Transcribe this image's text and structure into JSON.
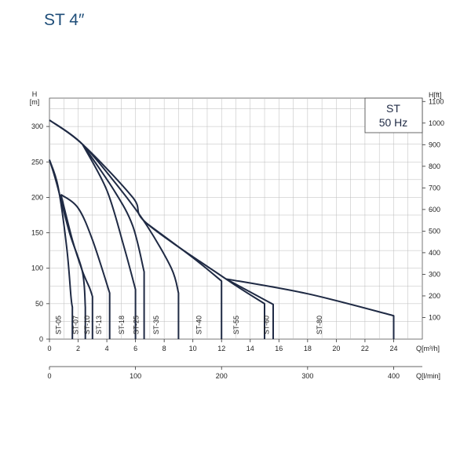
{
  "title": "ST 4″",
  "chart_data": {
    "type": "line",
    "legend": [
      "ST",
      "50 Hz"
    ],
    "legend_placement": "top-right",
    "grid": true,
    "x_axis": {
      "label": "Q[m³/h]",
      "range": [
        0,
        26
      ],
      "ticks": [
        0,
        2,
        4,
        6,
        8,
        10,
        12,
        14,
        16,
        18,
        20,
        22,
        24
      ]
    },
    "x2_axis": {
      "label": "Q[l/min]",
      "ticks": [
        0,
        100,
        200,
        300,
        400
      ]
    },
    "y_axis": {
      "label": [
        "H",
        "[m]"
      ],
      "range": [
        0,
        340
      ],
      "ticks": [
        0,
        50,
        100,
        150,
        200,
        250,
        300
      ]
    },
    "y2_axis": {
      "label": "H[ft]",
      "ticks": [
        100,
        200,
        300,
        400,
        500,
        600,
        700,
        800,
        900,
        1000,
        1100
      ]
    },
    "series": [
      {
        "name": "ST-05",
        "label_x": 0.8,
        "points": [
          [
            0,
            253
          ],
          [
            0.6,
            215
          ],
          [
            1.2,
            130
          ],
          [
            1.5,
            60
          ],
          [
            1.6,
            45
          ],
          [
            1.6,
            0
          ]
        ]
      },
      {
        "name": "ST-07",
        "label_x": 2.0,
        "points": [
          [
            0,
            253
          ],
          [
            0.5,
            220
          ],
          [
            1.4,
            150
          ],
          [
            2.3,
            95
          ],
          [
            2.5,
            45
          ],
          [
            2.5,
            0
          ]
        ]
      },
      {
        "name": "ST-10",
        "label_x": 2.8,
        "points": [
          [
            0.8,
            204
          ],
          [
            1.6,
            140
          ],
          [
            2.3,
            96
          ],
          [
            2.8,
            72
          ],
          [
            3.0,
            60
          ],
          [
            3.0,
            0
          ]
        ]
      },
      {
        "name": "ST-13",
        "label_x": 3.6,
        "points": [
          [
            0.8,
            204
          ],
          [
            2.0,
            185
          ],
          [
            3.0,
            140
          ],
          [
            4.2,
            65
          ],
          [
            4.2,
            0
          ]
        ]
      },
      {
        "name": "ST-18",
        "label_x": 5.2,
        "points": [
          [
            2.3,
            275
          ],
          [
            4.0,
            210
          ],
          [
            5.2,
            130
          ],
          [
            6.0,
            70
          ],
          [
            6.0,
            0
          ]
        ]
      },
      {
        "name": "ST-25",
        "label_x": 6.2,
        "points": [
          [
            2.3,
            275
          ],
          [
            4.5,
            210
          ],
          [
            5.8,
            160
          ],
          [
            6.6,
            95
          ],
          [
            6.6,
            0
          ]
        ]
      },
      {
        "name": "ST-35",
        "label_x": 7.6,
        "points": [
          [
            0,
            309
          ],
          [
            2.3,
            275
          ],
          [
            5.0,
            210
          ],
          [
            6.8,
            160
          ],
          [
            8.5,
            100
          ],
          [
            9.0,
            65
          ],
          [
            9.0,
            0
          ]
        ]
      },
      {
        "name": "ST-40",
        "label_x": 10.6,
        "points": [
          [
            6.8,
            163
          ],
          [
            10.0,
            115
          ],
          [
            12.0,
            82
          ],
          [
            12.0,
            0
          ]
        ]
      },
      {
        "name": "ST-55",
        "label_x": 13.2,
        "points": [
          [
            0,
            309
          ],
          [
            2.3,
            275
          ],
          [
            5.8,
            200
          ],
          [
            6.8,
            163
          ],
          [
            12.3,
            85
          ],
          [
            15.0,
            50
          ],
          [
            15.0,
            0
          ]
        ]
      },
      {
        "name": "ST-60",
        "label_x": 15.3,
        "points": [
          [
            12.3,
            85
          ],
          [
            15.6,
            49
          ],
          [
            15.6,
            0
          ]
        ]
      },
      {
        "name": "ST-80",
        "label_x": 19.0,
        "points": [
          [
            12.3,
            85
          ],
          [
            18.0,
            64
          ],
          [
            24.0,
            33
          ],
          [
            24.0,
            0
          ]
        ]
      }
    ]
  }
}
